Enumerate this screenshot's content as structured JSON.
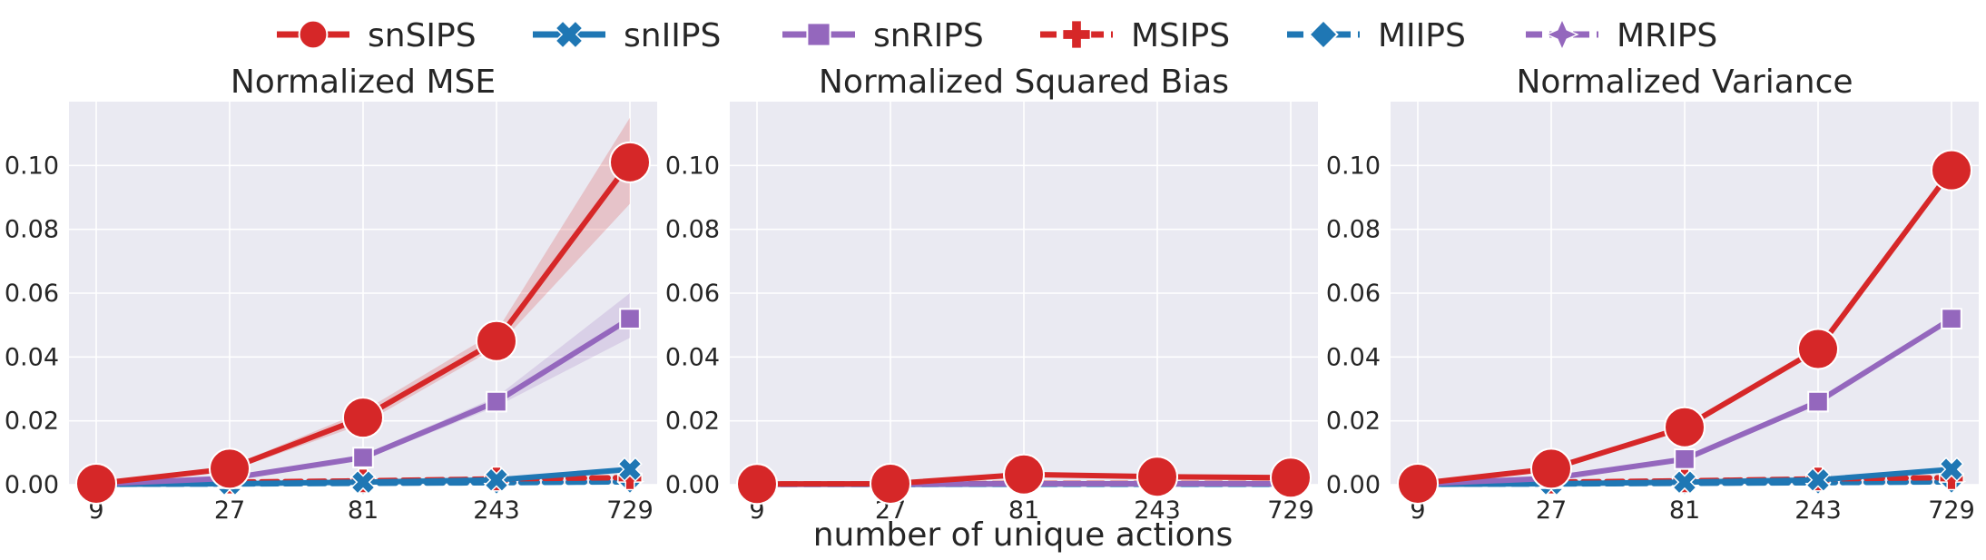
{
  "legend": {
    "placement": "top-center",
    "items": [
      {
        "label": "snSIPS",
        "color": "#d62728",
        "marker": "circle",
        "dashed": false
      },
      {
        "label": "snIIPS",
        "color": "#1f77b4",
        "marker": "x",
        "dashed": false
      },
      {
        "label": "snRIPS",
        "color": "#9467bd",
        "marker": "square",
        "dashed": false
      },
      {
        "label": "MSIPS",
        "color": "#d62728",
        "marker": "plus",
        "dashed": true
      },
      {
        "label": "MIIPS",
        "color": "#1f77b4",
        "marker": "diamond",
        "dashed": true
      },
      {
        "label": "MRIPS",
        "color": "#9467bd",
        "marker": "star",
        "dashed": true
      }
    ]
  },
  "xlabel": "number of unique actions",
  "chart_data": [
    {
      "type": "line",
      "title": "Normalized MSE",
      "xscale": "log",
      "x": [
        9,
        27,
        81,
        243,
        729
      ],
      "ylim": [
        0,
        0.12
      ],
      "yticks": [
        "0.00",
        "0.02",
        "0.04",
        "0.06",
        "0.08",
        "0.10"
      ],
      "grid": true,
      "series": [
        {
          "name": "snSIPS",
          "values": [
            0.0003,
            0.005,
            0.021,
            0.045,
            0.101
          ],
          "band_lo": [
            0.0002,
            0.0043,
            0.019,
            0.043,
            0.088
          ],
          "band_hi": [
            0.0004,
            0.0057,
            0.023,
            0.048,
            0.115
          ]
        },
        {
          "name": "snIIPS",
          "values": [
            0.0001,
            0.0003,
            0.0008,
            0.0015,
            0.0048
          ]
        },
        {
          "name": "snRIPS",
          "values": [
            0.0002,
            0.002,
            0.0085,
            0.026,
            0.052
          ],
          "band_lo": [
            0.0001,
            0.0017,
            0.0078,
            0.0245,
            0.046
          ],
          "band_hi": [
            0.0003,
            0.0023,
            0.0092,
            0.0275,
            0.06
          ]
        },
        {
          "name": "MSIPS",
          "values": [
            0.0005,
            0.0008,
            0.0012,
            0.0018,
            0.0022
          ]
        },
        {
          "name": "MIIPS",
          "values": [
            0.0001,
            0.0002,
            0.0004,
            0.0006,
            0.0009
          ]
        },
        {
          "name": "MRIPS",
          "values": [
            0.0002,
            0.0003,
            0.0005,
            0.0007,
            0.001
          ]
        }
      ]
    },
    {
      "type": "line",
      "title": "Normalized Squared Bias",
      "xscale": "log",
      "x": [
        9,
        27,
        81,
        243,
        729
      ],
      "ylim": [
        0,
        0.12
      ],
      "yticks": [
        "0.00",
        "0.02",
        "0.04",
        "0.06",
        "0.08",
        "0.10"
      ],
      "grid": true,
      "series": [
        {
          "name": "snSIPS",
          "values": [
            0.0002,
            0.0003,
            0.0032,
            0.0025,
            0.0022
          ]
        },
        {
          "name": "snIIPS",
          "values": [
            0.0001,
            0.0001,
            0.0002,
            0.0002,
            0.0002
          ]
        },
        {
          "name": "snRIPS",
          "values": [
            0.0001,
            0.0002,
            0.0003,
            0.0003,
            0.0003
          ]
        },
        {
          "name": "MSIPS",
          "values": [
            0.0002,
            0.0002,
            0.0004,
            0.0004,
            0.0004
          ]
        },
        {
          "name": "MIIPS",
          "values": [
            0.0001,
            0.0001,
            0.0001,
            0.0001,
            0.0001
          ]
        },
        {
          "name": "MRIPS",
          "values": [
            0.0001,
            0.0001,
            0.0002,
            0.0002,
            0.0002
          ]
        }
      ]
    },
    {
      "type": "line",
      "title": "Normalized Variance",
      "xscale": "log",
      "x": [
        9,
        27,
        81,
        243,
        729
      ],
      "ylim": [
        0,
        0.12
      ],
      "yticks": [
        "0.00",
        "0.02",
        "0.04",
        "0.06",
        "0.08",
        "0.10"
      ],
      "grid": true,
      "series": [
        {
          "name": "snSIPS",
          "values": [
            0.0003,
            0.005,
            0.018,
            0.0425,
            0.0985
          ]
        },
        {
          "name": "snIIPS",
          "values": [
            0.0001,
            0.0003,
            0.0008,
            0.0015,
            0.0048
          ]
        },
        {
          "name": "snRIPS",
          "values": [
            0.0002,
            0.002,
            0.008,
            0.026,
            0.052
          ]
        },
        {
          "name": "MSIPS",
          "values": [
            0.0005,
            0.0008,
            0.0012,
            0.0018,
            0.0022
          ]
        },
        {
          "name": "MIIPS",
          "values": [
            0.0001,
            0.0002,
            0.0004,
            0.0006,
            0.0009
          ]
        },
        {
          "name": "MRIPS",
          "values": [
            0.0002,
            0.0003,
            0.0005,
            0.0007,
            0.001
          ]
        }
      ]
    }
  ]
}
